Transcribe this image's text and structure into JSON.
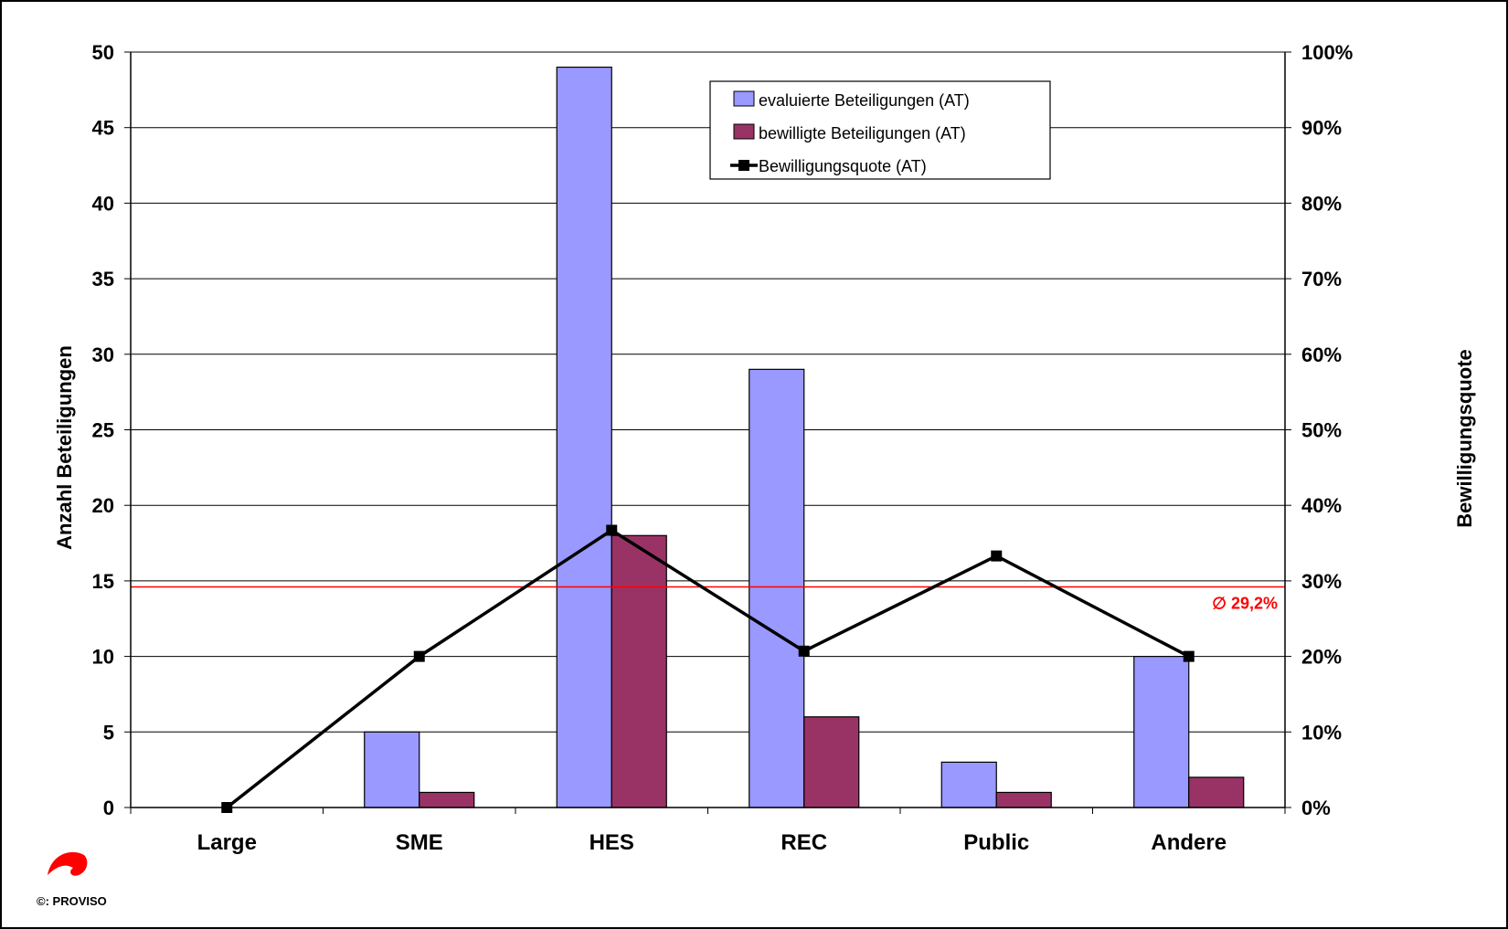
{
  "chart_data": {
    "type": "bar",
    "categories": [
      "Large",
      "SME",
      "HES",
      "REC",
      "Public",
      "Andere"
    ],
    "series": [
      {
        "name": "evaluierte Beteiligungen (AT)",
        "type": "bar",
        "axis": "left",
        "color": "#9999ff",
        "values": [
          0,
          5,
          49,
          29,
          3,
          10
        ]
      },
      {
        "name": "bewilligte Beteiligungen (AT)",
        "type": "bar",
        "axis": "left",
        "color": "#993366",
        "values": [
          0,
          1,
          18,
          6,
          1,
          2
        ]
      },
      {
        "name": "Bewilligungsquote (AT)",
        "type": "line",
        "axis": "right",
        "color": "#000000",
        "values": [
          0,
          20,
          36.7,
          20.7,
          33.3,
          20
        ]
      }
    ],
    "ylabel": "Anzahl Beteiligungen",
    "y2label": "Bewilligungsquote",
    "ylim": [
      0,
      50
    ],
    "y2lim": [
      0,
      100
    ],
    "yticks": [
      0,
      5,
      10,
      15,
      20,
      25,
      30,
      35,
      40,
      45,
      50
    ],
    "y2ticks": [
      "0%",
      "10%",
      "20%",
      "30%",
      "40%",
      "50%",
      "60%",
      "70%",
      "80%",
      "90%",
      "100%"
    ],
    "grid": true,
    "legend_position": "top-center",
    "average_line": {
      "value": 29.2,
      "label": "∅ 29,2%",
      "color": "#ff0000"
    },
    "copyright": "©: PROVISO",
    "logo_color": "#ff0000"
  }
}
